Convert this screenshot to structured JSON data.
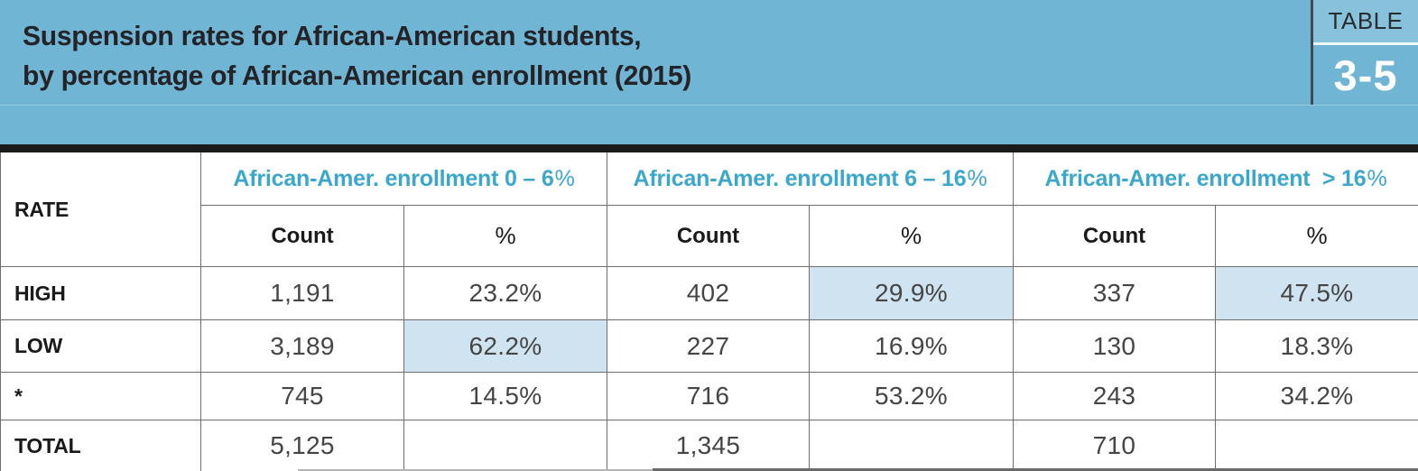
{
  "title": {
    "line1": "Suspension rates for African-American students,",
    "line2": "by percentage of African-American enrollment (2015)"
  },
  "badge": {
    "label": "TABLE",
    "number": "3-5"
  },
  "table": {
    "corner_label": "RATE",
    "groups": [
      {
        "prefix": "African-Amer. enrollment 0 – 6",
        "pct": "%"
      },
      {
        "prefix": "African-Amer. enrollment 6 – 16",
        "pct": "%"
      },
      {
        "prefix": "African-Amer. enrollment  > 16",
        "pct": "%"
      }
    ],
    "subheaders": {
      "count": "Count",
      "pct": "%"
    },
    "rows": [
      {
        "label": "HIGH",
        "cells": [
          {
            "v": "1,191"
          },
          {
            "v": "23.2%"
          },
          {
            "v": "402"
          },
          {
            "v": "29.9%",
            "hl": true
          },
          {
            "v": "337"
          },
          {
            "v": "47.5%",
            "hl": true
          }
        ]
      },
      {
        "label": "LOW",
        "cells": [
          {
            "v": "3,189"
          },
          {
            "v": "62.2%",
            "hl": true
          },
          {
            "v": "227"
          },
          {
            "v": "16.9%"
          },
          {
            "v": "130"
          },
          {
            "v": "18.3%"
          }
        ]
      },
      {
        "label": "*",
        "cells": [
          {
            "v": "745"
          },
          {
            "v": "14.5%"
          },
          {
            "v": "716"
          },
          {
            "v": "53.2%"
          },
          {
            "v": "243"
          },
          {
            "v": "34.2%"
          }
        ]
      },
      {
        "label": "TOTAL",
        "cells": [
          {
            "v": "5,125"
          },
          {
            "v": ""
          },
          {
            "v": "1,345"
          },
          {
            "v": ""
          },
          {
            "v": "710"
          },
          {
            "v": ""
          }
        ]
      }
    ]
  },
  "colors": {
    "band_blue": "#71b5d4",
    "header_cyan": "#3ba7cd",
    "highlight_blue": "#cfe4f0",
    "bar_black": "#1b1b1b",
    "border_gray": "#6e6e6e"
  }
}
